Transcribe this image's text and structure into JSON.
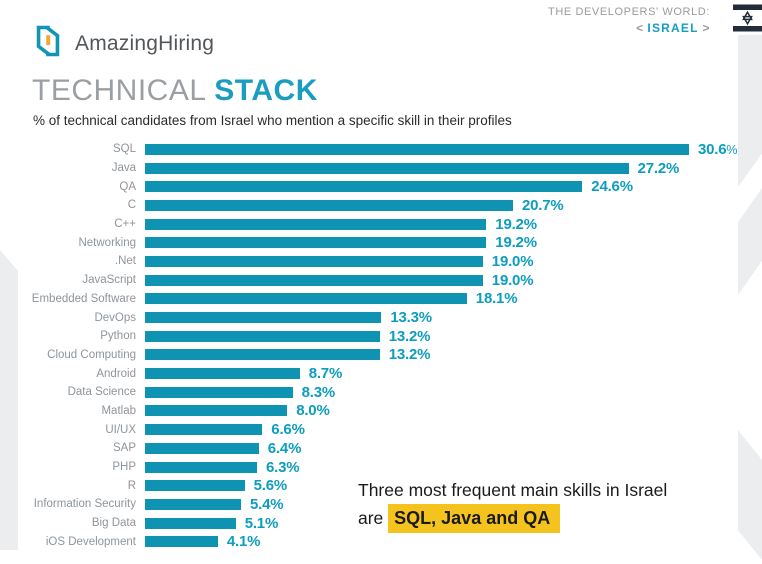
{
  "header": {
    "logo_text": "AmazingHiring",
    "world_label": "THE DEVELOPERS' WORLD:",
    "country_prev": "<",
    "country": "ISRAEL",
    "country_next": ">"
  },
  "title": {
    "part1": "TECHNICAL ",
    "part2": "STACK"
  },
  "subtitle": "% of technical candidates from Israel who mention a specific skill in their profiles",
  "chart_data": {
    "type": "bar",
    "orientation": "horizontal",
    "categories": [
      "SQL",
      "Java",
      "QA",
      "C",
      "C++",
      "Networking",
      ".Net",
      "JavaScript",
      "Embedded Software",
      "DevOps",
      "Python",
      "Cloud Computing",
      "Android",
      "Data Science",
      "Matlab",
      "UI/UX",
      "SAP",
      "PHP",
      "R",
      "Information Security",
      "Big Data",
      "iOS Development"
    ],
    "values": [
      30.6,
      27.2,
      24.6,
      20.7,
      19.2,
      19.2,
      19.0,
      19.0,
      18.1,
      13.3,
      13.2,
      13.2,
      8.7,
      8.3,
      8.0,
      6.6,
      6.4,
      6.3,
      5.6,
      5.4,
      5.1,
      4.1
    ],
    "value_suffix": "%",
    "value_decimals": 1,
    "xlim": [
      0,
      30.6
    ],
    "grid": false,
    "legend": "none",
    "bar_color": "#0e93b3",
    "title": "TECHNICAL STACK",
    "xlabel": "",
    "ylabel": ""
  },
  "annotation": {
    "line1": "Three most frequent main skills in Israel",
    "line2_prefix": "are ",
    "line2_highlight": "SQL, Java and QA"
  },
  "colors": {
    "accent_teal": "#1b9dc0",
    "bar_teal": "#0e93b3",
    "highlight_yellow": "#f4c31d",
    "flag_navy": "#222c3a",
    "logo_orange": "#eda93c",
    "muted_gray": "#9b9b9b",
    "deco_gray": "#ebedef"
  }
}
